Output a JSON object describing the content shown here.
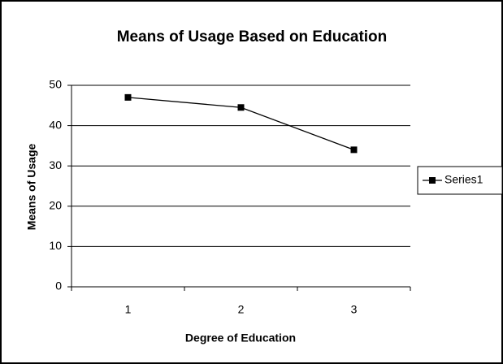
{
  "chart_data": {
    "type": "line",
    "title": "Means of Usage  Based on Education",
    "x_label": "Degree of Education",
    "y_label": "Means of Usage",
    "categories": [
      "1",
      "2",
      "3"
    ],
    "series": [
      {
        "name": "Series1",
        "color": "#000000",
        "values": [
          47,
          44.5,
          34
        ]
      }
    ],
    "ylim": [
      0,
      50
    ],
    "yticks": [
      0,
      10,
      20,
      30,
      40,
      50
    ],
    "grid": true,
    "legend": "right"
  }
}
